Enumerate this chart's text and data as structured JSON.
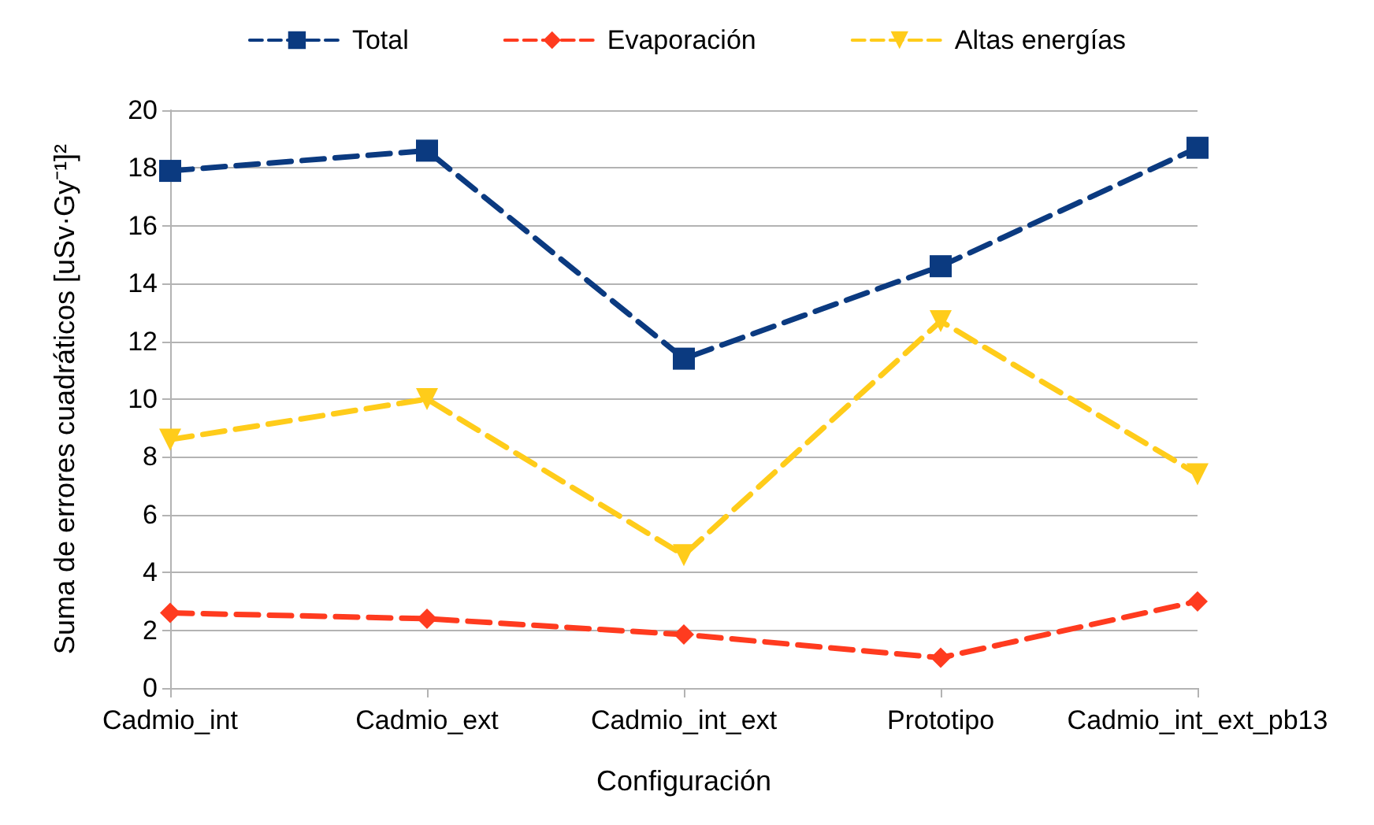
{
  "chart_data": {
    "type": "line",
    "xlabel": "Configuración",
    "ylabel": "Suma de errores cuadráticos [uSv·Gy⁻¹]²",
    "categories": [
      "Cadmio_int",
      "Cadmio_ext",
      "Cadmio_int_ext",
      "Prototipo",
      "Cadmio_int_ext_pb13"
    ],
    "series": [
      {
        "name": "Total",
        "color": "#0b3a80",
        "marker": "square",
        "values": [
          17.9,
          18.6,
          11.4,
          14.6,
          18.7
        ]
      },
      {
        "name": "Evaporación",
        "color": "#ff3b1f",
        "marker": "diamond",
        "values": [
          2.6,
          2.4,
          1.85,
          1.05,
          3.0
        ]
      },
      {
        "name": "Altas energías",
        "color": "#ffcc1a",
        "marker": "triangle",
        "values": [
          8.6,
          10.0,
          4.6,
          12.7,
          7.4
        ]
      }
    ],
    "ylim": [
      0,
      20
    ],
    "yticks": [
      0,
      2,
      4,
      6,
      8,
      10,
      12,
      14,
      16,
      18,
      20
    ],
    "grid": "y",
    "legend": "top",
    "line_style": "dashed"
  }
}
